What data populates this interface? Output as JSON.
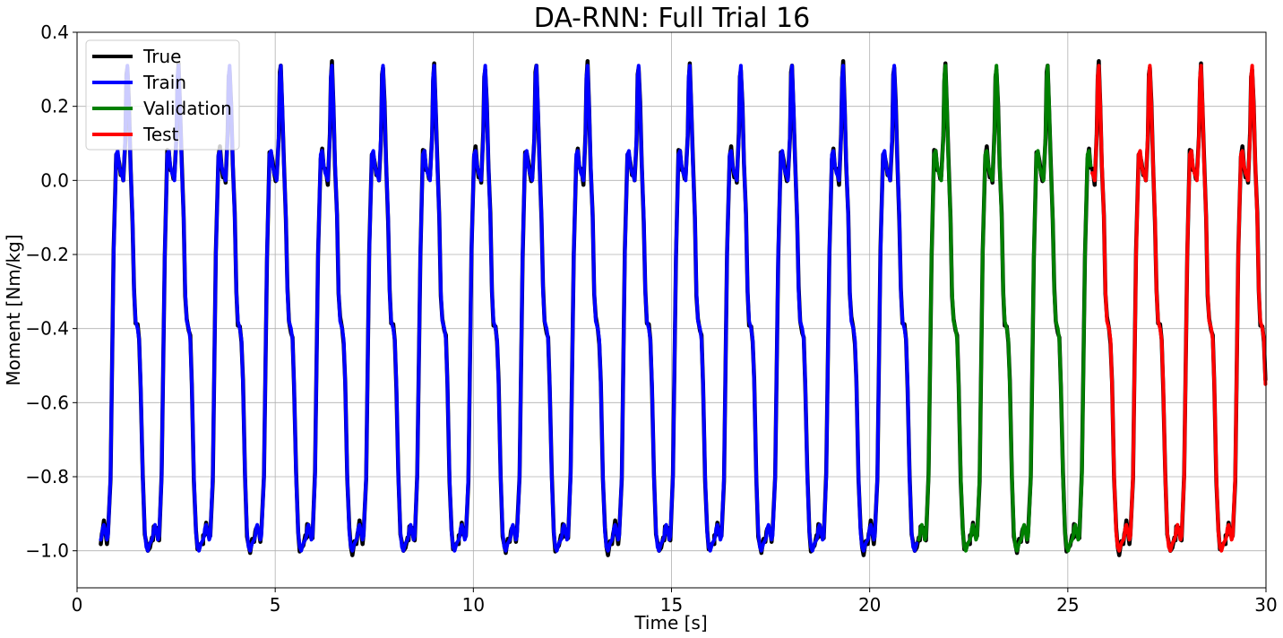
{
  "chart_data": {
    "type": "line",
    "title": "DA-RNN: Full Trial 16",
    "xlabel": "Time [s]",
    "ylabel": "Moment [Nm/kg]",
    "xlim": [
      0,
      30
    ],
    "ylim": [
      -1.1,
      0.4
    ],
    "grid": true,
    "legend_position": "top-left",
    "xticks": [
      "0",
      "5",
      "10",
      "15",
      "20",
      "25",
      "30"
    ],
    "yticks": [
      "0.4",
      "0.2",
      "0.0",
      "−0.2",
      "−0.4",
      "−0.6",
      "−0.8",
      "−1.0"
    ],
    "cycle_starts_s": [
      0.6,
      1.89,
      3.18,
      4.47,
      5.76,
      7.05,
      8.34,
      9.63,
      10.92,
      12.21,
      13.5,
      14.79,
      16.08,
      17.37,
      18.66,
      19.95,
      21.24,
      22.53,
      23.82,
      25.11,
      26.4,
      27.69,
      28.98
    ],
    "cycle_template": {
      "phase": [
        0,
        0.02,
        0.035,
        0.06,
        0.09,
        0.12,
        0.14,
        0.19,
        0.25,
        0.3,
        0.33,
        0.36,
        0.39,
        0.42,
        0.44,
        0.48,
        0.5,
        0.52,
        0.55,
        0.58,
        0.62,
        0.65,
        0.68,
        0.72,
        0.75,
        0.78,
        0.82,
        0.86,
        0.89,
        0.92,
        0.96,
        1.0
      ],
      "moment": [
        -0.97,
        -0.96,
        -0.94,
        -0.93,
        -0.95,
        -0.97,
        -0.96,
        -0.8,
        -0.2,
        0.07,
        0.08,
        0.04,
        0.02,
        0.01,
        0.0,
        0.12,
        0.28,
        0.31,
        0.2,
        0.05,
        -0.1,
        -0.3,
        -0.38,
        -0.4,
        -0.43,
        -0.55,
        -0.8,
        -0.95,
        -0.99,
        -1.0,
        -0.98,
        -0.97
      ]
    },
    "series": [
      {
        "name": "True",
        "color": "#000000",
        "x_range": [
          0.6,
          30.0
        ]
      },
      {
        "name": "Train",
        "color": "#0000ff",
        "x_range": [
          0.6,
          21.2
        ]
      },
      {
        "name": "Validation",
        "color": "#008000",
        "x_range": [
          21.2,
          25.6
        ]
      },
      {
        "name": "Test",
        "color": "#ff0000",
        "x_range": [
          25.6,
          30.0
        ]
      }
    ]
  }
}
